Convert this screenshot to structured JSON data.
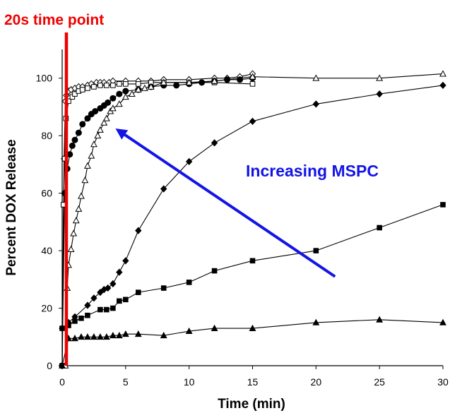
{
  "colors": {
    "highlight": "#ee0000",
    "arrow": "#1414e6",
    "series": "#000000"
  },
  "chart_data": {
    "type": "scatter",
    "title": "",
    "xlabel": "Time (min)",
    "ylabel": "Percent DOX Release",
    "xlim": [
      0,
      30
    ],
    "ylim": [
      0,
      110
    ],
    "xticks": [
      0,
      5,
      10,
      15,
      20,
      25,
      30
    ],
    "yticks": [
      0,
      20,
      40,
      60,
      80,
      100
    ],
    "grid": false,
    "legend": "none",
    "vline": {
      "x": 0.333,
      "label": "20s time point"
    },
    "annotation": {
      "text": "Increasing MSPC",
      "arrow_from": [
        21.5,
        31
      ],
      "arrow_to": [
        4.2,
        82.5
      ]
    },
    "series": [
      {
        "marker": "diamond-open",
        "x": [
          0,
          0.15,
          0.25,
          0.33,
          0.5,
          0.7,
          1.0,
          1.3,
          1.6,
          2.0,
          2.3,
          2.7,
          3.0,
          3.3,
          3.7,
          4.0,
          5.0,
          6.0,
          7.0,
          8.0,
          10.0,
          12.0,
          13.0,
          14.0,
          15.0
        ],
        "y": [
          0,
          72,
          92,
          94,
          95.5,
          96,
          96.5,
          97,
          97,
          97.5,
          98,
          98.5,
          98.5,
          98.5,
          98.5,
          99,
          99,
          99,
          99,
          99.5,
          99.5,
          100,
          100,
          100.5,
          101.5
        ]
      },
      {
        "marker": "square-open",
        "x": [
          0,
          0.1,
          0.2,
          0.3,
          0.5,
          0.8,
          1.0,
          1.3,
          1.6,
          2.0,
          2.5,
          3.0,
          3.5,
          4.0,
          4.5,
          5.0,
          6.0,
          7.0,
          8.0,
          10.0,
          12.0,
          15.0
        ],
        "y": [
          0,
          56,
          72,
          86,
          92,
          93.5,
          94.5,
          95.5,
          96,
          96.5,
          97,
          97.5,
          97.5,
          97.5,
          98,
          98,
          98,
          98.5,
          98.5,
          98.5,
          98.5,
          98
        ]
      },
      {
        "marker": "circle-filled",
        "x": [
          0,
          0.2,
          0.4,
          0.6,
          0.8,
          1.0,
          1.3,
          1.6,
          2.0,
          2.3,
          2.6,
          3.0,
          3.3,
          3.6,
          4.0,
          4.5,
          5.0,
          6.0,
          7.0,
          8.0,
          9.0,
          10.0,
          11.0,
          12.0,
          13.0,
          14.0,
          15.0
        ],
        "y": [
          0,
          60,
          68.5,
          73.5,
          76.5,
          78.5,
          81,
          84,
          86,
          87.5,
          88.5,
          89.5,
          90.5,
          91.5,
          93,
          94.5,
          95.5,
          96,
          97,
          97.5,
          97.5,
          98,
          98.5,
          99,
          99.5,
          99.5,
          100
        ]
      },
      {
        "marker": "triangle-open",
        "x": [
          0.25,
          0.4,
          0.5,
          0.7,
          0.9,
          1.1,
          1.3,
          1.5,
          1.8,
          2.0,
          2.3,
          2.5,
          2.8,
          3.0,
          3.3,
          3.5,
          3.8,
          4.0,
          4.5,
          5.0,
          5.5,
          6.0,
          6.5,
          7.0,
          8.0,
          10.0,
          12.0,
          15.0,
          20.0,
          25.0,
          30.0
        ],
        "y": [
          0,
          27,
          35,
          40.5,
          46,
          50.5,
          54.5,
          59,
          64.5,
          69.5,
          73,
          77,
          80,
          82,
          84.5,
          86,
          88.5,
          89.5,
          91,
          93.5,
          94.5,
          96,
          96.5,
          97,
          98.5,
          98.5,
          99,
          100.5,
          100,
          100,
          101.5
        ]
      },
      {
        "marker": "diamond-filled",
        "x": [
          0,
          0.5,
          1.0,
          2.0,
          2.5,
          3.0,
          3.3,
          3.6,
          4.0,
          4.5,
          5.0,
          6.0,
          8.0,
          10.0,
          12.0,
          15.0,
          20.0,
          25.0,
          30.0
        ],
        "y": [
          13,
          15,
          17,
          21,
          23.5,
          25.5,
          26.5,
          27,
          28.5,
          32.5,
          36.5,
          47,
          61.5,
          71,
          77.5,
          85,
          91,
          94.5,
          97.5
        ]
      },
      {
        "marker": "square-filled",
        "x": [
          0,
          0.5,
          1.0,
          1.5,
          2.0,
          3.0,
          3.5,
          4.0,
          4.5,
          5.0,
          6.0,
          8.0,
          10.0,
          12.0,
          15.0,
          20.0,
          25.0,
          30.0
        ],
        "y": [
          13,
          14,
          15.5,
          16.5,
          17.5,
          19.5,
          19.5,
          20,
          22.5,
          23,
          25.5,
          27,
          29,
          33,
          36.5,
          40,
          48,
          56
        ]
      },
      {
        "marker": "triangle-filled",
        "x": [
          0,
          0.5,
          1.0,
          1.5,
          2.0,
          2.5,
          3.0,
          3.5,
          4.0,
          4.5,
          5.0,
          6.0,
          8.0,
          10.0,
          12.0,
          15.0,
          20.0,
          25.0,
          30.0
        ],
        "y": [
          0,
          9.5,
          9.5,
          10,
          10,
          10,
          10,
          10,
          10.5,
          10.5,
          11,
          11,
          10.5,
          12,
          13,
          13,
          15,
          16,
          15
        ]
      }
    ]
  }
}
